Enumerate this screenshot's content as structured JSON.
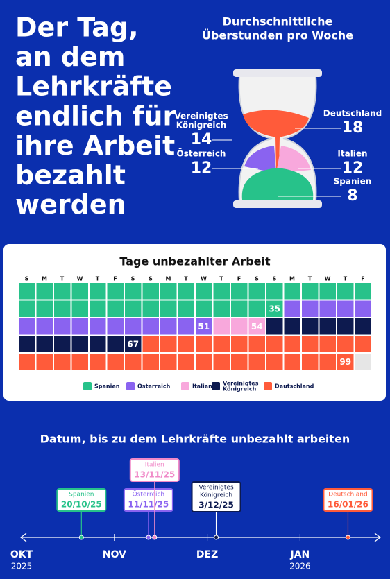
{
  "headline": {
    "lines": [
      "Der Tag,",
      "an dem",
      "Lehrkräfte",
      "endlich für",
      "ihre Arbeit",
      "bezahlt",
      "werden"
    ]
  },
  "hourglass": {
    "title_lines": [
      "Durchschnittliche",
      "Überstunden pro Woche"
    ],
    "items": [
      {
        "country": [
          "Vereinigtes",
          "Königreich"
        ],
        "value": 14
      },
      {
        "country": [
          "Österreich"
        ],
        "value": 12
      },
      {
        "country": [
          "Deutschland"
        ],
        "value": 18
      },
      {
        "country": [
          "Italien"
        ],
        "value": 12
      },
      {
        "country": [
          "Spanien"
        ],
        "value": 8
      }
    ]
  },
  "calendar": {
    "title": "Tage unbezahlter Arbeit",
    "weekdays": [
      "S",
      "M",
      "T",
      "W",
      "T",
      "F",
      "S",
      "S",
      "M",
      "T",
      "W",
      "T",
      "F",
      "S",
      "S",
      "M",
      "T",
      "W",
      "T",
      "F"
    ],
    "segments": [
      {
        "name": [
          "Spanien"
        ],
        "color": "#27c28a",
        "last_day": 35
      },
      {
        "name": [
          "Österreich"
        ],
        "color": "#8a63f0",
        "last_day": 51
      },
      {
        "name": [
          "Italien"
        ],
        "color": "#f8a8dc",
        "last_day": 54
      },
      {
        "name": [
          "Vereinigtes",
          "Königreich"
        ],
        "color": "#0d1a4f",
        "last_day": 67
      },
      {
        "name": [
          "Deutschland"
        ],
        "color": "#ff5b3a",
        "last_day": 99
      }
    ]
  },
  "timeline": {
    "title": "Datum, bis zu dem Lehrkräfte unbezahlt arbeiten",
    "months": [
      {
        "label": "OKT",
        "year": "2025"
      },
      {
        "label": "NOV"
      },
      {
        "label": "DEZ"
      },
      {
        "label": "JAN",
        "year": "2026"
      }
    ],
    "events": [
      {
        "country": [
          "Spanien"
        ],
        "date": "20/10/25",
        "color": "#27c28a"
      },
      {
        "country": [
          "Österreich"
        ],
        "date": "11/11/25",
        "color": "#8a63f0"
      },
      {
        "country": [
          "Italien"
        ],
        "date": "13/11/25",
        "color": "#f08ac8"
      },
      {
        "country": [
          "Vereinigtes",
          "Königreich"
        ],
        "date": "3/12/25",
        "color": "#0d1a4f"
      },
      {
        "country": [
          "Deutschland"
        ],
        "date": "16/01/26",
        "color": "#ff5b3a"
      }
    ]
  }
}
